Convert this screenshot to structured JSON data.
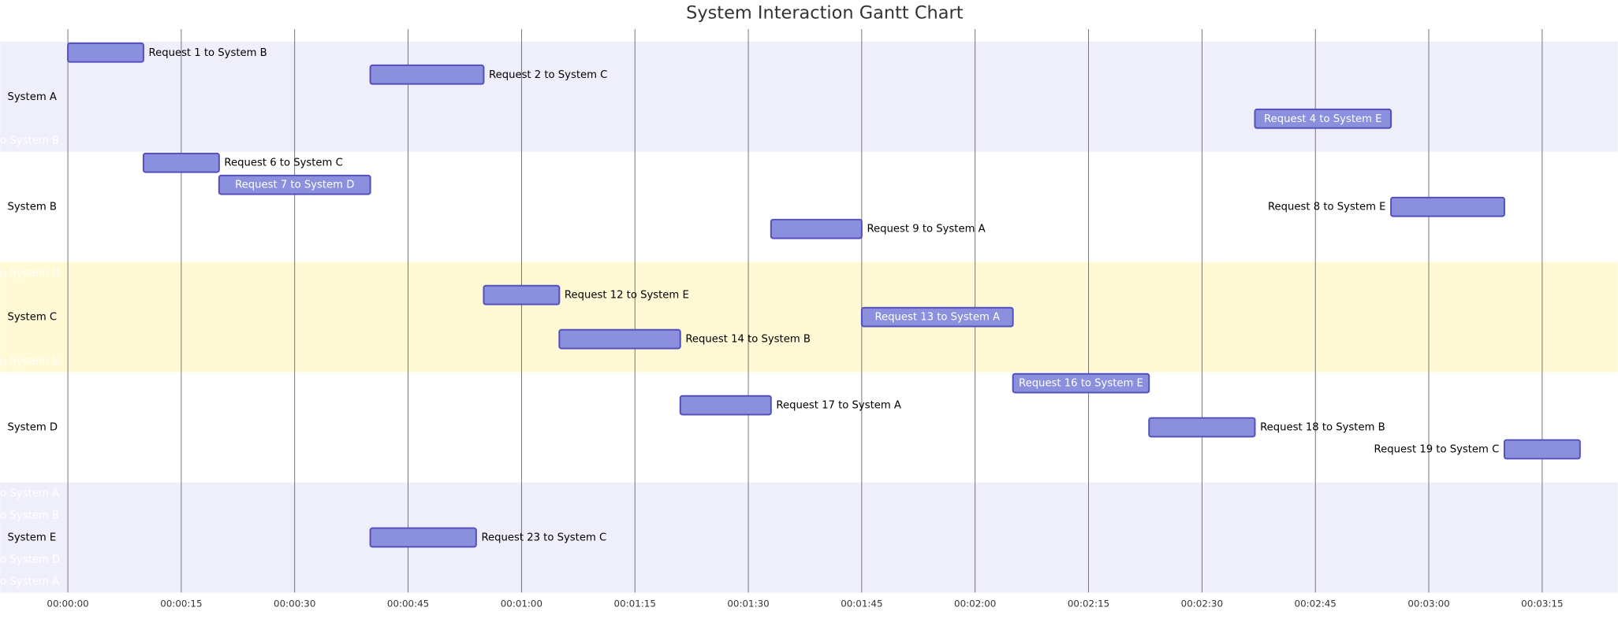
{
  "chart_data": {
    "type": "gantt",
    "title": "System Interaction Gantt Chart",
    "xlim": [
      0,
      205
    ],
    "xticks": [
      {
        "value": 0,
        "label": "00:00:00"
      },
      {
        "value": 15,
        "label": "00:00:15"
      },
      {
        "value": 30,
        "label": "00:00:30"
      },
      {
        "value": 45,
        "label": "00:00:45"
      },
      {
        "value": 60,
        "label": "00:01:00"
      },
      {
        "value": 75,
        "label": "00:01:15"
      },
      {
        "value": 90,
        "label": "00:01:30"
      },
      {
        "value": 105,
        "label": "00:01:45"
      },
      {
        "value": 120,
        "label": "00:02:00"
      },
      {
        "value": 135,
        "label": "00:02:15"
      },
      {
        "value": 150,
        "label": "00:02:30"
      },
      {
        "value": 165,
        "label": "00:02:45"
      },
      {
        "value": 180,
        "label": "00:03:00"
      },
      {
        "value": 195,
        "label": "00:03:15"
      }
    ],
    "bar_color": "#8a90dd",
    "bar_border": "#534fbc",
    "sections": [
      {
        "name": "System A",
        "color": "#efeffb",
        "tasks": [
          {
            "label": "Request 1 to System B",
            "start": 0,
            "end": 10
          },
          {
            "label": "Request 2 to System C",
            "start": 40,
            "end": 55
          },
          null,
          {
            "label": "Request 4 to System E",
            "start": 157,
            "end": 175
          },
          {
            "label": "o System B"
          }
        ]
      },
      {
        "name": "System B",
        "color": "#ffffff",
        "tasks": [
          {
            "label": "Request 6 to System C",
            "start": 10,
            "end": 20
          },
          {
            "label": "Request 7 to System D",
            "start": 20,
            "end": 40
          },
          {
            "label": "Request 8 to System E",
            "start": 175,
            "end": 190
          },
          {
            "label": "Request 9 to System A",
            "start": 93,
            "end": 105
          },
          null
        ]
      },
      {
        "name": "System C",
        "color": "#fffad5",
        "tasks": [
          {
            "label": "o System D"
          },
          {
            "label": "Request 12 to System E",
            "start": 55,
            "end": 65
          },
          {
            "label": "Request 13 to System A",
            "start": 105,
            "end": 125
          },
          {
            "label": "Request 14 to System B",
            "start": 65,
            "end": 81
          },
          {
            "label": "o System E"
          }
        ]
      },
      {
        "name": "System D",
        "color": "#ffffff",
        "tasks": [
          {
            "label": "Request 16 to System E",
            "start": 125,
            "end": 143
          },
          {
            "label": "Request 17 to System A",
            "start": 81,
            "end": 93
          },
          {
            "label": "Request 18 to System B",
            "start": 143,
            "end": 157
          },
          {
            "label": "Request 19 to System C",
            "start": 190,
            "end": 200
          },
          null
        ]
      },
      {
        "name": "System E",
        "color": "#efeffb",
        "tasks": [
          {
            "label": "o System A"
          },
          {
            "label": "o System B"
          },
          {
            "label": "Request 23 to System C",
            "start": 40,
            "end": 54
          },
          {
            "label": "o System D"
          },
          {
            "label": "o System A"
          }
        ]
      }
    ]
  }
}
